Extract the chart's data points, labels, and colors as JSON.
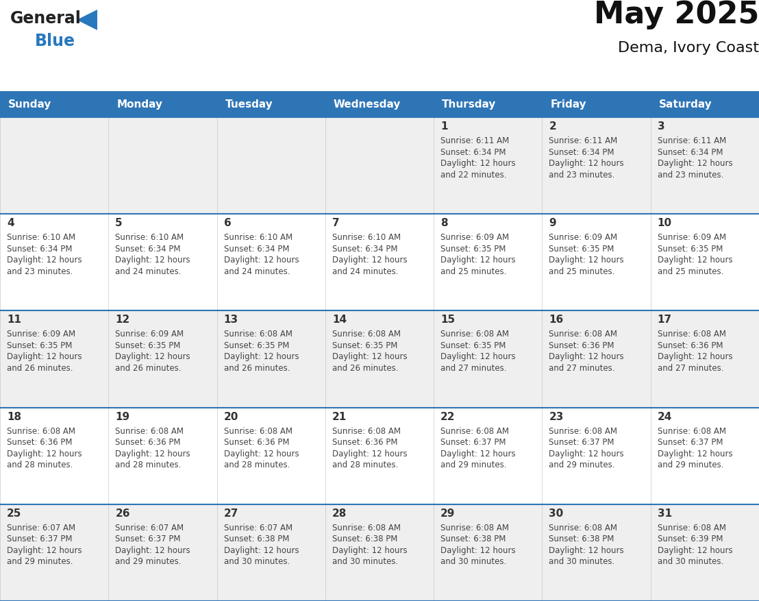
{
  "title": "May 2025",
  "subtitle": "Dema, Ivory Coast",
  "header_color": "#2E75B6",
  "header_text_color": "#FFFFFF",
  "days_of_week": [
    "Sunday",
    "Monday",
    "Tuesday",
    "Wednesday",
    "Thursday",
    "Friday",
    "Saturday"
  ],
  "row_colors": [
    "#EFEFEF",
    "#FFFFFF"
  ],
  "text_color": "#444444",
  "day_number_color": "#333333",
  "logo_blue_color": "#2878BE",
  "divider_color": "#2E75B6",
  "calendar": [
    [
      {
        "day": "",
        "sunrise": "",
        "sunset": "",
        "daylight": ""
      },
      {
        "day": "",
        "sunrise": "",
        "sunset": "",
        "daylight": ""
      },
      {
        "day": "",
        "sunrise": "",
        "sunset": "",
        "daylight": ""
      },
      {
        "day": "",
        "sunrise": "",
        "sunset": "",
        "daylight": ""
      },
      {
        "day": "1",
        "sunrise": "6:11 AM",
        "sunset": "6:34 PM",
        "daylight": "12 hours and 22 minutes."
      },
      {
        "day": "2",
        "sunrise": "6:11 AM",
        "sunset": "6:34 PM",
        "daylight": "12 hours and 23 minutes."
      },
      {
        "day": "3",
        "sunrise": "6:11 AM",
        "sunset": "6:34 PM",
        "daylight": "12 hours and 23 minutes."
      }
    ],
    [
      {
        "day": "4",
        "sunrise": "6:10 AM",
        "sunset": "6:34 PM",
        "daylight": "12 hours and 23 minutes."
      },
      {
        "day": "5",
        "sunrise": "6:10 AM",
        "sunset": "6:34 PM",
        "daylight": "12 hours and 24 minutes."
      },
      {
        "day": "6",
        "sunrise": "6:10 AM",
        "sunset": "6:34 PM",
        "daylight": "12 hours and 24 minutes."
      },
      {
        "day": "7",
        "sunrise": "6:10 AM",
        "sunset": "6:34 PM",
        "daylight": "12 hours and 24 minutes."
      },
      {
        "day": "8",
        "sunrise": "6:09 AM",
        "sunset": "6:35 PM",
        "daylight": "12 hours and 25 minutes."
      },
      {
        "day": "9",
        "sunrise": "6:09 AM",
        "sunset": "6:35 PM",
        "daylight": "12 hours and 25 minutes."
      },
      {
        "day": "10",
        "sunrise": "6:09 AM",
        "sunset": "6:35 PM",
        "daylight": "12 hours and 25 minutes."
      }
    ],
    [
      {
        "day": "11",
        "sunrise": "6:09 AM",
        "sunset": "6:35 PM",
        "daylight": "12 hours and 26 minutes."
      },
      {
        "day": "12",
        "sunrise": "6:09 AM",
        "sunset": "6:35 PM",
        "daylight": "12 hours and 26 minutes."
      },
      {
        "day": "13",
        "sunrise": "6:08 AM",
        "sunset": "6:35 PM",
        "daylight": "12 hours and 26 minutes."
      },
      {
        "day": "14",
        "sunrise": "6:08 AM",
        "sunset": "6:35 PM",
        "daylight": "12 hours and 26 minutes."
      },
      {
        "day": "15",
        "sunrise": "6:08 AM",
        "sunset": "6:35 PM",
        "daylight": "12 hours and 27 minutes."
      },
      {
        "day": "16",
        "sunrise": "6:08 AM",
        "sunset": "6:36 PM",
        "daylight": "12 hours and 27 minutes."
      },
      {
        "day": "17",
        "sunrise": "6:08 AM",
        "sunset": "6:36 PM",
        "daylight": "12 hours and 27 minutes."
      }
    ],
    [
      {
        "day": "18",
        "sunrise": "6:08 AM",
        "sunset": "6:36 PM",
        "daylight": "12 hours and 28 minutes."
      },
      {
        "day": "19",
        "sunrise": "6:08 AM",
        "sunset": "6:36 PM",
        "daylight": "12 hours and 28 minutes."
      },
      {
        "day": "20",
        "sunrise": "6:08 AM",
        "sunset": "6:36 PM",
        "daylight": "12 hours and 28 minutes."
      },
      {
        "day": "21",
        "sunrise": "6:08 AM",
        "sunset": "6:36 PM",
        "daylight": "12 hours and 28 minutes."
      },
      {
        "day": "22",
        "sunrise": "6:08 AM",
        "sunset": "6:37 PM",
        "daylight": "12 hours and 29 minutes."
      },
      {
        "day": "23",
        "sunrise": "6:08 AM",
        "sunset": "6:37 PM",
        "daylight": "12 hours and 29 minutes."
      },
      {
        "day": "24",
        "sunrise": "6:08 AM",
        "sunset": "6:37 PM",
        "daylight": "12 hours and 29 minutes."
      }
    ],
    [
      {
        "day": "25",
        "sunrise": "6:07 AM",
        "sunset": "6:37 PM",
        "daylight": "12 hours and 29 minutes."
      },
      {
        "day": "26",
        "sunrise": "6:07 AM",
        "sunset": "6:37 PM",
        "daylight": "12 hours and 29 minutes."
      },
      {
        "day": "27",
        "sunrise": "6:07 AM",
        "sunset": "6:38 PM",
        "daylight": "12 hours and 30 minutes."
      },
      {
        "day": "28",
        "sunrise": "6:08 AM",
        "sunset": "6:38 PM",
        "daylight": "12 hours and 30 minutes."
      },
      {
        "day": "29",
        "sunrise": "6:08 AM",
        "sunset": "6:38 PM",
        "daylight": "12 hours and 30 minutes."
      },
      {
        "day": "30",
        "sunrise": "6:08 AM",
        "sunset": "6:38 PM",
        "daylight": "12 hours and 30 minutes."
      },
      {
        "day": "31",
        "sunrise": "6:08 AM",
        "sunset": "6:39 PM",
        "daylight": "12 hours and 30 minutes."
      }
    ]
  ],
  "title_fontsize": 32,
  "subtitle_fontsize": 16,
  "header_fontsize": 11,
  "day_num_fontsize": 11,
  "cell_text_fontsize": 8.5
}
